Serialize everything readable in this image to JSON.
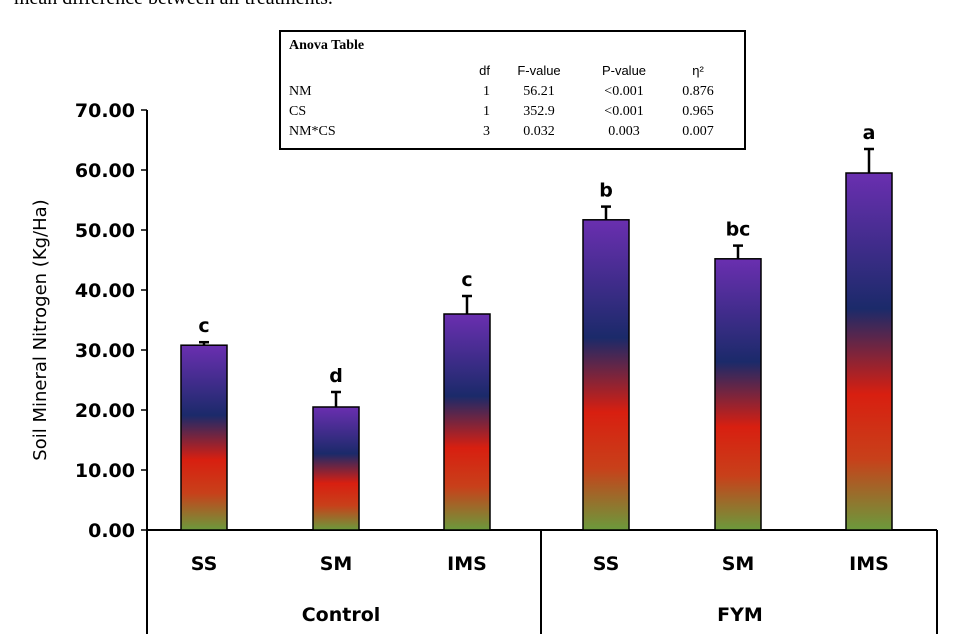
{
  "caption_fragment": "mean difference between all treatments.",
  "chart_data": {
    "type": "bar",
    "ylabel": "Soil Mineral Nitrogen (Kg/Ha)",
    "ylim": [
      0,
      70
    ],
    "yticks": [
      "0.00",
      "10.00",
      "20.00",
      "30.00",
      "40.00",
      "50.00",
      "60.00",
      "70.00"
    ],
    "groups": [
      {
        "label": "Control",
        "categories": [
          "SS",
          "SM",
          "IMS"
        ]
      },
      {
        "label": "FYM",
        "categories": [
          "SS",
          "SM",
          "IMS"
        ]
      }
    ],
    "bars": [
      {
        "group": "Control",
        "category": "SS",
        "value": 30.8,
        "error": 0.5,
        "letter": "c"
      },
      {
        "group": "Control",
        "category": "SM",
        "value": 20.5,
        "error": 2.5,
        "letter": "d"
      },
      {
        "group": "Control",
        "category": "IMS",
        "value": 36.0,
        "error": 3.0,
        "letter": "c"
      },
      {
        "group": "FYM",
        "category": "SS",
        "value": 51.7,
        "error": 2.2,
        "letter": "b"
      },
      {
        "group": "FYM",
        "category": "SM",
        "value": 45.2,
        "error": 2.2,
        "letter": "bc"
      },
      {
        "group": "FYM",
        "category": "IMS",
        "value": 59.5,
        "error": 4.0,
        "letter": "a"
      }
    ],
    "bar_gradient": [
      "#6b9a3c",
      "#d81f10",
      "#1b2a6a",
      "#6a2fb0"
    ],
    "grid": false
  },
  "anova": {
    "title": "Anova Table",
    "headers": {
      "df": "df",
      "f": "F-value",
      "p": "P-value",
      "eta": "η²"
    },
    "rows": [
      {
        "term": "NM",
        "df": "1",
        "f": "56.21",
        "p": "<0.001",
        "eta": "0.876"
      },
      {
        "term": "CS",
        "df": "1",
        "f": "352.9",
        "p": "<0.001",
        "eta": "0.965"
      },
      {
        "term": "NM*CS",
        "df": "3",
        "f": "0.032",
        "p": "0.003",
        "eta": "0.007"
      }
    ]
  }
}
